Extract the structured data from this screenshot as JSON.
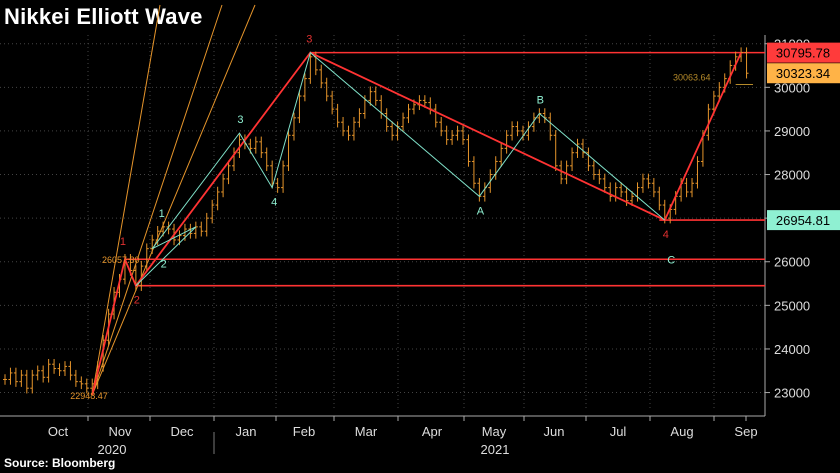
{
  "title": "Nikkei Elliott Wave",
  "source": "Source: Bloomberg",
  "chart_data": {
    "type": "line",
    "title": "Nikkei Elliott Wave",
    "x_ticks": [
      "Oct",
      "Nov",
      "Dec",
      "Jan",
      "Feb",
      "Mar",
      "Apr",
      "May",
      "Jun",
      "Jul",
      "Aug",
      "Sep"
    ],
    "year_labels": [
      "2020",
      "2021"
    ],
    "ylim": [
      22600,
      31200
    ],
    "y_ticks": [
      23000,
      24000,
      25000,
      26000,
      27000,
      28000,
      29000,
      30000,
      31000
    ],
    "y_tick_labels": [
      "23000",
      "24000",
      "25000",
      "26000",
      "27000",
      "28000",
      "29000",
      "30000",
      "31000"
    ],
    "last_value_labels": [
      {
        "value": "30795.78",
        "color": "#ff3b3b"
      },
      {
        "value": "30323.34",
        "color": "#ffb347"
      },
      {
        "value": "26954.81",
        "color": "#8ff0d2"
      }
    ],
    "level_lines": [
      30795.78,
      26954.81,
      26057.3,
      25450
    ],
    "series": [
      {
        "values": [
          [
            0.0,
            23300
          ],
          [
            1.0,
            23450
          ],
          [
            2.0,
            23250
          ],
          [
            3.0,
            23400
          ],
          [
            4.0,
            23100
          ],
          [
            5.0,
            23400
          ],
          [
            6.0,
            23500
          ],
          [
            7.0,
            23350
          ],
          [
            8.0,
            23650
          ],
          [
            9.0,
            23550
          ],
          [
            10.0,
            23500
          ],
          [
            11.0,
            23600
          ],
          [
            12.0,
            23400
          ],
          [
            13.0,
            23250
          ],
          [
            14.0,
            23200
          ],
          [
            15.0,
            23100
          ],
          [
            16.0,
            23200
          ],
          [
            17.0,
            23600
          ],
          [
            18.0,
            24200
          ],
          [
            19.0,
            24800
          ],
          [
            20.0,
            25300
          ],
          [
            21.0,
            25600
          ],
          [
            22.0,
            26057.3
          ],
          [
            23.0,
            25800
          ],
          [
            24.0,
            25450
          ],
          [
            25.0,
            25900
          ],
          [
            26.0,
            26300
          ],
          [
            27.0,
            26500
          ],
          [
            28.0,
            26700
          ],
          [
            29.0,
            26800
          ],
          [
            30.0,
            26750
          ],
          [
            31.0,
            26500
          ],
          [
            32.0,
            26600
          ],
          [
            33.0,
            26750
          ],
          [
            34.0,
            26650
          ],
          [
            35.0,
            26800
          ],
          [
            36.0,
            26700
          ],
          [
            37.0,
            27000
          ],
          [
            38.0,
            27300
          ],
          [
            39.0,
            27600
          ],
          [
            40.0,
            27900
          ],
          [
            41.0,
            28200
          ],
          [
            42.0,
            28500
          ],
          [
            43.0,
            28800
          ],
          [
            44.0,
            28700
          ],
          [
            45.0,
            28600
          ],
          [
            46.0,
            28750
          ],
          [
            47.0,
            28500
          ],
          [
            48.0,
            28200
          ],
          [
            49.0,
            27800
          ],
          [
            50.0,
            27700
          ],
          [
            51.0,
            28200
          ],
          [
            52.0,
            28900
          ],
          [
            53.0,
            29300
          ],
          [
            54.0,
            29800
          ],
          [
            55.0,
            30200
          ],
          [
            56.0,
            30700
          ],
          [
            57.0,
            30400
          ],
          [
            58.0,
            30100
          ],
          [
            59.0,
            29800
          ],
          [
            60.0,
            29500
          ],
          [
            61.0,
            29200
          ],
          [
            62.0,
            29000
          ],
          [
            63.0,
            28900
          ],
          [
            64.0,
            29200
          ],
          [
            65.0,
            29400
          ],
          [
            66.0,
            29700
          ],
          [
            67.0,
            29900
          ],
          [
            68.0,
            29700
          ],
          [
            69.0,
            29400
          ],
          [
            70.0,
            29100
          ],
          [
            71.0,
            28900
          ],
          [
            72.0,
            29100
          ],
          [
            73.0,
            29300
          ],
          [
            74.0,
            29500
          ],
          [
            75.0,
            29600
          ],
          [
            76.0,
            29700
          ],
          [
            77.0,
            29650
          ],
          [
            78.0,
            29500
          ],
          [
            79.0,
            29200
          ],
          [
            80.0,
            29000
          ],
          [
            81.0,
            28800
          ],
          [
            82.0,
            28900
          ],
          [
            83.0,
            29000
          ],
          [
            84.0,
            28800
          ],
          [
            85.0,
            28300
          ],
          [
            86.0,
            27800
          ],
          [
            87.0,
            27500
          ],
          [
            88.0,
            27700
          ],
          [
            89.0,
            28000
          ],
          [
            90.0,
            28300
          ],
          [
            91.0,
            28600
          ],
          [
            92.0,
            28900
          ],
          [
            93.0,
            29100
          ],
          [
            94.0,
            29000
          ],
          [
            95.0,
            28900
          ],
          [
            96.0,
            29100
          ],
          [
            97.0,
            29300
          ],
          [
            98.0,
            29400
          ],
          [
            99.0,
            29300
          ],
          [
            100.0,
            28900
          ],
          [
            101.0,
            28200
          ],
          [
            102.0,
            27900
          ],
          [
            103.0,
            28200
          ],
          [
            104.0,
            28500
          ],
          [
            105.0,
            28700
          ],
          [
            106.0,
            28500
          ],
          [
            107.0,
            28200
          ],
          [
            108.0,
            28000
          ],
          [
            109.0,
            27900
          ],
          [
            110.0,
            27700
          ],
          [
            111.0,
            27500
          ],
          [
            112.0,
            27700
          ],
          [
            113.0,
            27600
          ],
          [
            114.0,
            27400
          ],
          [
            115.0,
            27500
          ],
          [
            116.0,
            27700
          ],
          [
            117.0,
            27900
          ],
          [
            118.0,
            27800
          ],
          [
            119.0,
            27600
          ],
          [
            120.0,
            27300
          ],
          [
            121.0,
            27000
          ],
          [
            122.0,
            27200
          ],
          [
            123.0,
            27500
          ],
          [
            124.0,
            27800
          ],
          [
            125.0,
            27600
          ],
          [
            126.0,
            27800
          ],
          [
            127.0,
            28300
          ],
          [
            128.0,
            28900
          ],
          [
            129.0,
            29500
          ],
          [
            130.0,
            29800
          ],
          [
            131.0,
            30000
          ],
          [
            132.0,
            30200
          ],
          [
            133.0,
            30500
          ],
          [
            134.0,
            30700
          ],
          [
            135.0,
            30795.78
          ],
          [
            136.0,
            30323.34
          ]
        ]
      }
    ]
  },
  "annotations": {
    "wave_labels": [
      {
        "text": "1",
        "color": "#e03030"
      },
      {
        "text": "2",
        "color": "#e03030"
      },
      {
        "text": "1",
        "color": "#8ff0d2"
      },
      {
        "text": "2",
        "color": "#8ff0d2"
      },
      {
        "text": "3",
        "color": "#8ff0d2"
      },
      {
        "text": "4",
        "color": "#8ff0d2"
      },
      {
        "text": "3",
        "color": "#e03030"
      },
      {
        "text": "A",
        "color": "#8ff0d2"
      },
      {
        "text": "B",
        "color": "#8ff0d2"
      },
      {
        "text": "4",
        "color": "#e03030"
      },
      {
        "text": "C",
        "color": "#8ff0d2"
      }
    ],
    "price_notes": [
      "22948.47",
      "26057.30",
      "30063.64"
    ]
  }
}
